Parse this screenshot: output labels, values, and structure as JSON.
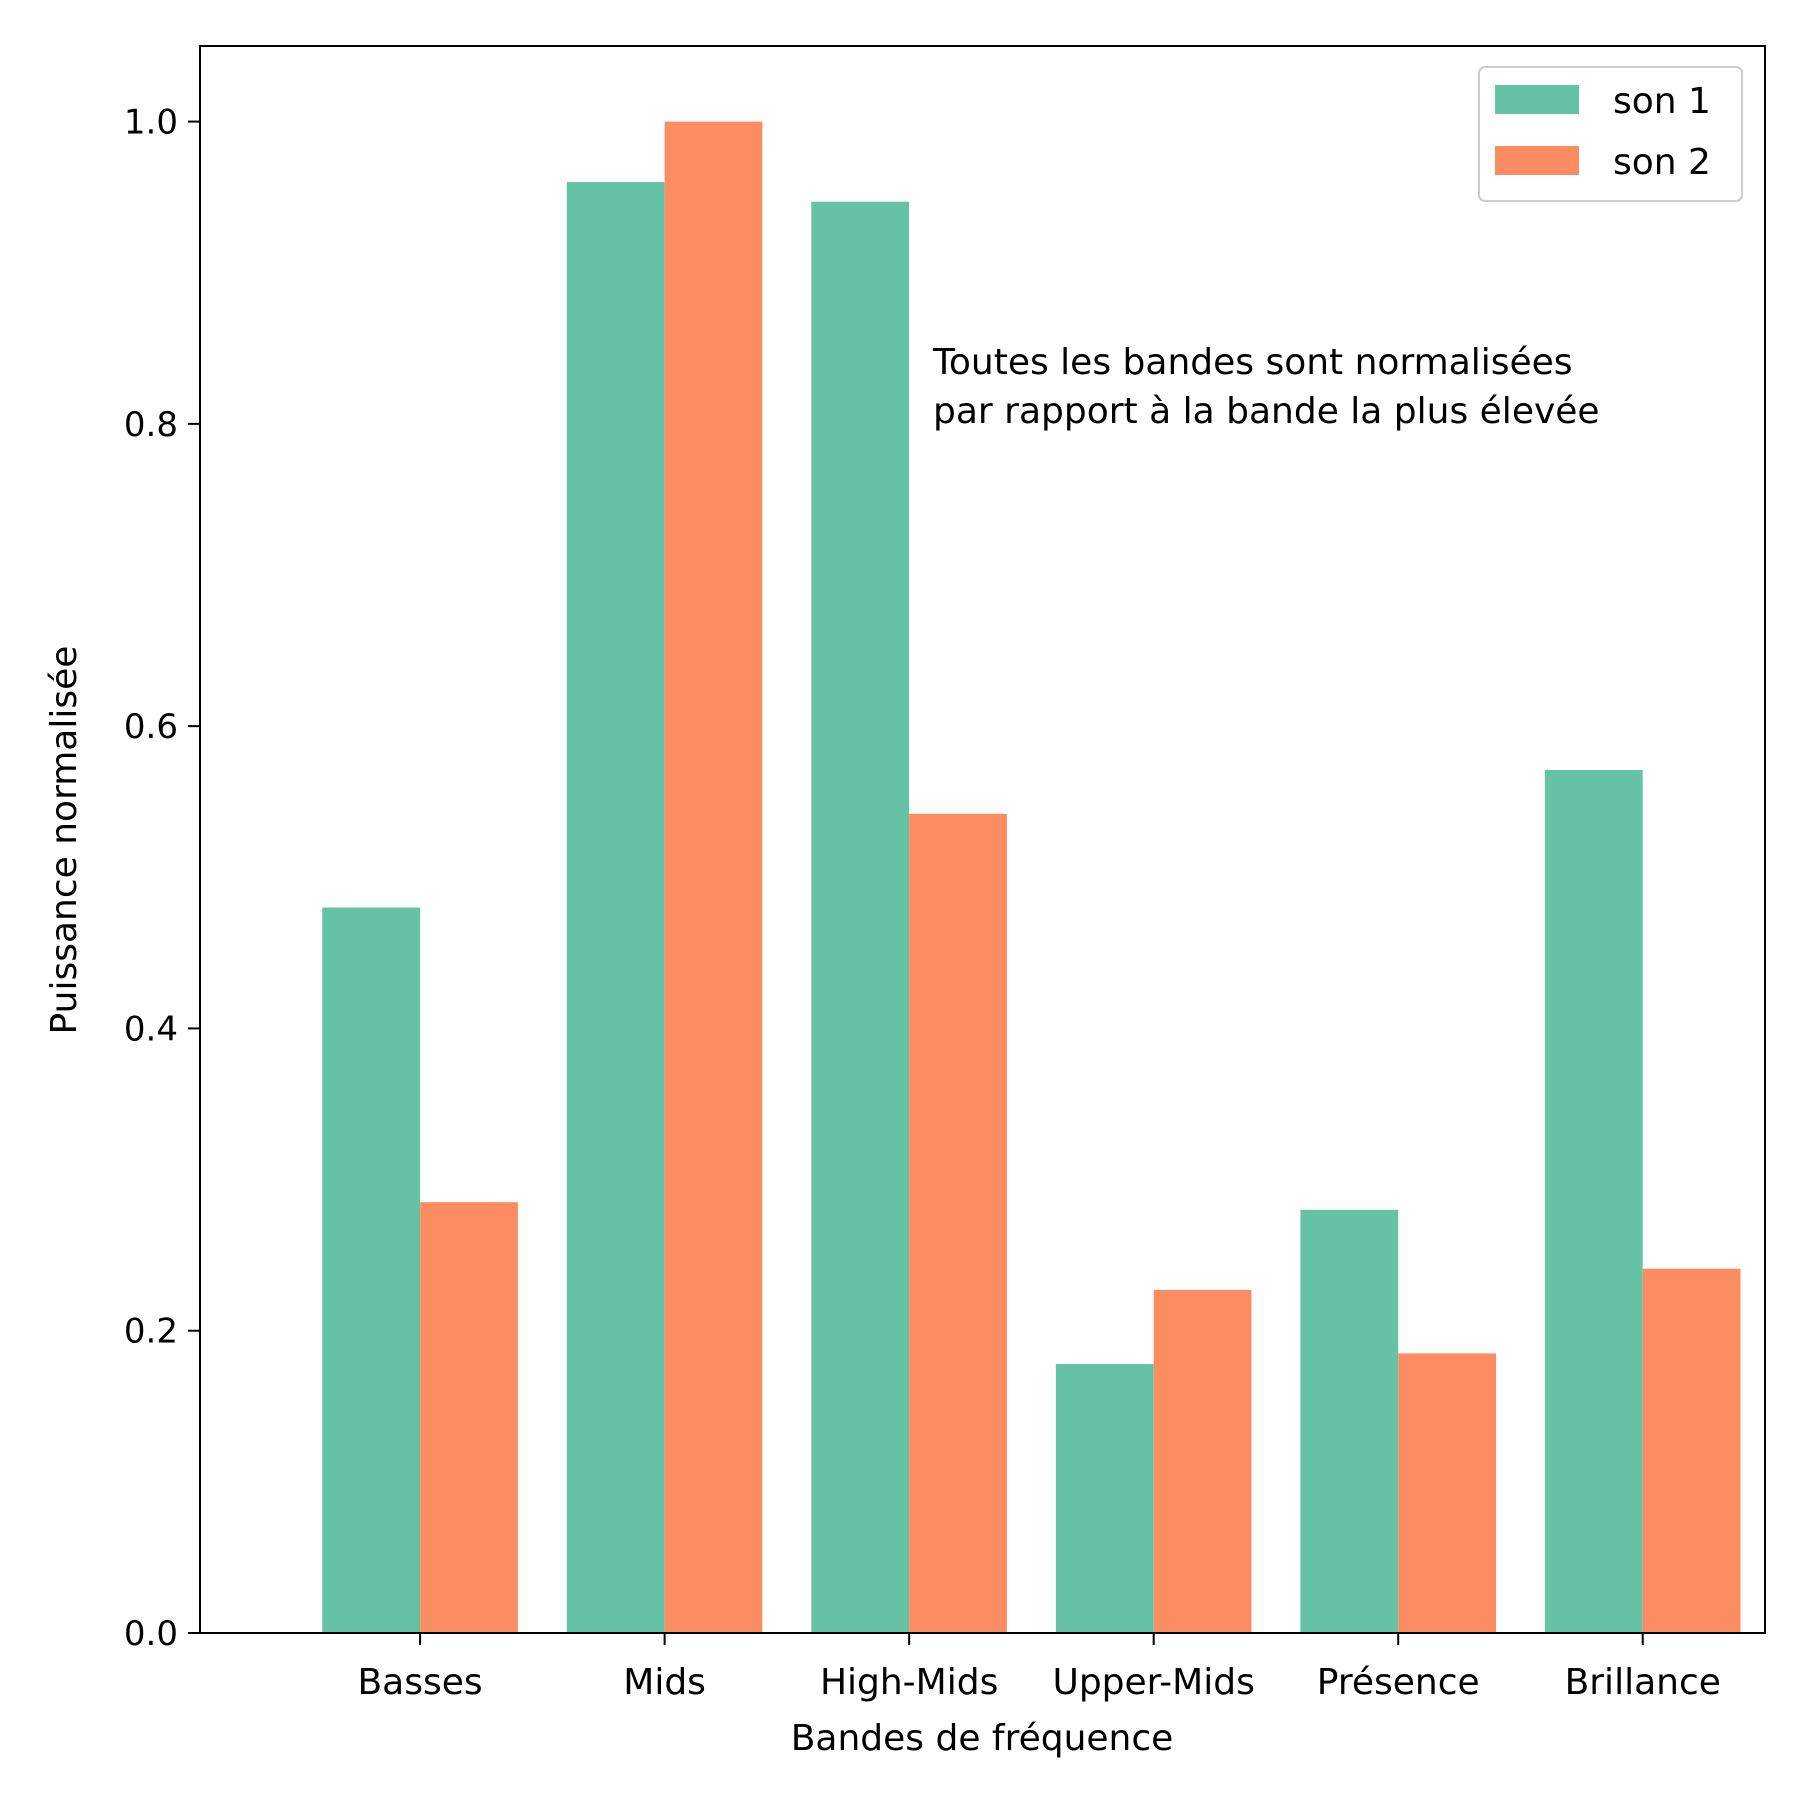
{
  "chart_data": {
    "type": "bar",
    "title": "",
    "xlabel": "Bandes de fréquence",
    "ylabel": "Puissance normalisée",
    "categories": [
      "Basses",
      "Mids",
      "High-Mids",
      "Upper-Mids",
      "Présence",
      "Brillance"
    ],
    "series": [
      {
        "name": "son 1",
        "color": "#66c2a5",
        "values": [
          0.48,
          0.96,
          0.947,
          0.178,
          0.28,
          0.571
        ]
      },
      {
        "name": "son 2",
        "color": "#fc8d62",
        "values": [
          0.285,
          1.0,
          0.542,
          0.227,
          0.185,
          0.241
        ]
      }
    ],
    "ylim": [
      0,
      1.05
    ],
    "yticks": [
      "0.0",
      "0.2",
      "0.4",
      "0.6",
      "0.8",
      "1.0"
    ],
    "annotation": [
      "Toutes les bandes sont normalisées",
      "par rapport à la bande la plus élevée"
    ],
    "legend": {
      "placement": "top-right"
    },
    "grid": false
  }
}
